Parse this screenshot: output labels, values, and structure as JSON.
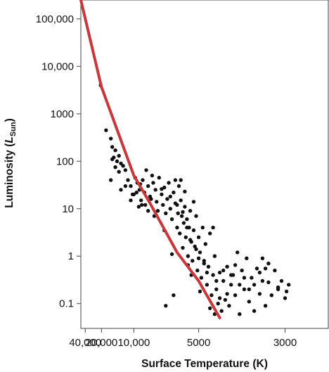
{
  "chart_data": {
    "type": "scatter",
    "title": "",
    "xlabel": "Surface Temperature (K)",
    "ylabel_parts": {
      "main": "Luminosity (",
      "L": "L",
      "sub": "Sun",
      "close": ")"
    },
    "x_scale": "reciprocal",
    "y_scale": "log",
    "xlim": [
      55000,
      2500
    ],
    "ylim": [
      0.03,
      250000
    ],
    "x_ticks": [
      {
        "value": 40000,
        "label": "40,000"
      },
      {
        "value": 20000,
        "label": "20,000"
      },
      {
        "value": 10000,
        "label": "10,000"
      },
      {
        "value": 5000,
        "label": "5000"
      },
      {
        "value": 3000,
        "label": "3000"
      }
    ],
    "y_ticks": [
      {
        "value": 0.1,
        "label": "0.1"
      },
      {
        "value": 1,
        "label": "1"
      },
      {
        "value": 10,
        "label": "10"
      },
      {
        "value": 100,
        "label": "100"
      },
      {
        "value": 1000,
        "label": "1000"
      },
      {
        "value": 10000,
        "label": "10,000"
      },
      {
        "value": 100000,
        "label": "100,000"
      }
    ],
    "grid": false,
    "colors": {
      "points": "#111111",
      "main_sequence_line": "#c8373a"
    },
    "main_sequence_line": [
      {
        "temperature": 55000,
        "luminosity": 250000
      },
      {
        "temperature": 20000,
        "luminosity": 3700
      },
      {
        "temperature": 10000,
        "luminosity": 50
      },
      {
        "temperature": 8000,
        "luminosity": 13
      },
      {
        "temperature": 6000,
        "luminosity": 1.2
      },
      {
        "temperature": 5000,
        "luminosity": 0.3
      },
      {
        "temperature": 4300,
        "luminosity": 0.05
      }
    ],
    "series": [
      {
        "points": [
          [
            20500,
            4000
          ],
          [
            17500,
            450
          ],
          [
            15500,
            300
          ],
          [
            15000,
            200
          ],
          [
            14500,
            120
          ],
          [
            14000,
            170
          ],
          [
            13500,
            100
          ],
          [
            13000,
            130
          ],
          [
            12500,
            90
          ],
          [
            12000,
            80
          ],
          [
            11500,
            65
          ],
          [
            11000,
            40
          ],
          [
            11500,
            30
          ],
          [
            12500,
            25
          ],
          [
            13000,
            60
          ],
          [
            14000,
            75
          ],
          [
            15000,
            110
          ],
          [
            15500,
            40
          ],
          [
            10500,
            30
          ],
          [
            10000,
            20
          ],
          [
            10500,
            15
          ],
          [
            9800,
            45
          ],
          [
            9500,
            35
          ],
          [
            9200,
            25
          ],
          [
            9000,
            15
          ],
          [
            8800,
            40
          ],
          [
            8600,
            22
          ],
          [
            8500,
            12
          ],
          [
            8400,
            65
          ],
          [
            8200,
            30
          ],
          [
            8000,
            18
          ],
          [
            7800,
            50
          ],
          [
            7700,
            35
          ],
          [
            7500,
            25
          ],
          [
            7400,
            14
          ],
          [
            7300,
            9
          ],
          [
            7200,
            45
          ],
          [
            7000,
            20
          ],
          [
            6900,
            12
          ],
          [
            6800,
            28
          ],
          [
            6700,
            8
          ],
          [
            6600,
            16
          ],
          [
            6500,
            35
          ],
          [
            6400,
            10
          ],
          [
            6300,
            6
          ],
          [
            6200,
            22
          ],
          [
            6100,
            13
          ],
          [
            6000,
            4
          ],
          [
            5950,
            8
          ],
          [
            5900,
            30
          ],
          [
            5850,
            3
          ],
          [
            5800,
            15
          ],
          [
            5750,
            7
          ],
          [
            5700,
            1.5
          ],
          [
            5650,
            5
          ],
          [
            5600,
            11
          ],
          [
            5550,
            2.5
          ],
          [
            5500,
            6
          ],
          [
            5450,
            1
          ],
          [
            5400,
            4
          ],
          [
            5350,
            9
          ],
          [
            5300,
            2
          ],
          [
            5250,
            0.8
          ],
          [
            5200,
            3.5
          ],
          [
            5150,
            1.6
          ],
          [
            5100,
            7
          ],
          [
            5050,
            0.5
          ],
          [
            5000,
            2.5
          ],
          [
            4950,
            1.2
          ],
          [
            4900,
            0.35
          ],
          [
            4850,
            4
          ],
          [
            4800,
            0.8
          ],
          [
            4750,
            1.8
          ],
          [
            4700,
            0.25
          ],
          [
            4650,
            0.6
          ],
          [
            4600,
            3
          ],
          [
            4550,
            0.15
          ],
          [
            4500,
            0.4
          ],
          [
            4450,
            1
          ],
          [
            4400,
            0.2
          ],
          [
            4350,
            0.1
          ],
          [
            4300,
            0.45
          ],
          [
            4250,
            0.07
          ],
          [
            4200,
            0.3
          ],
          [
            4150,
            0.12
          ],
          [
            4100,
            0.6
          ],
          [
            4050,
            0.09
          ],
          [
            4000,
            0.25
          ],
          [
            3950,
            0.4
          ],
          [
            3900,
            0.15
          ],
          [
            3850,
            1.2
          ],
          [
            3800,
            0.06
          ],
          [
            3750,
            0.5
          ],
          [
            3700,
            0.2
          ],
          [
            3650,
            0.9
          ],
          [
            3600,
            0.11
          ],
          [
            3550,
            0.35
          ],
          [
            3500,
            0.07
          ],
          [
            3450,
            0.55
          ],
          [
            3400,
            0.16
          ],
          [
            3350,
            0.9
          ],
          [
            3300,
            0.09
          ],
          [
            3250,
            0.28
          ],
          [
            3200,
            0.15
          ],
          [
            3150,
            0.5
          ],
          [
            3100,
            0.2
          ],
          [
            3050,
            0.3
          ],
          [
            3000,
            0.13
          ],
          [
            2980,
            0.18
          ],
          [
            2950,
            0.25
          ],
          [
            6700,
            0.09
          ],
          [
            6200,
            0.15
          ],
          [
            5300,
            0.4
          ],
          [
            4100,
            0.16
          ],
          [
            3500,
            0.25
          ],
          [
            3350,
            0.3
          ],
          [
            4600,
            0.08
          ],
          [
            4450,
            0.06
          ],
          [
            6300,
            1.1
          ],
          [
            6800,
            3.5
          ],
          [
            7600,
            7
          ],
          [
            8200,
            9
          ],
          [
            9300,
            11
          ],
          [
            10200,
            20
          ],
          [
            5600,
            23
          ],
          [
            5200,
            14
          ],
          [
            5800,
            40
          ],
          [
            6100,
            40
          ],
          [
            7000,
            26
          ],
          [
            7900,
            16
          ],
          [
            8900,
            12
          ],
          [
            9600,
            22
          ],
          [
            9100,
            33
          ],
          [
            6400,
            18
          ],
          [
            6000,
            12
          ],
          [
            5700,
            8.5
          ],
          [
            5500,
            4
          ],
          [
            5350,
            2.2
          ],
          [
            5100,
            1.4
          ],
          [
            4800,
            0.7
          ],
          [
            4950,
            0.18
          ],
          [
            4700,
            0.45
          ],
          [
            4400,
            0.3
          ],
          [
            4200,
            0.5
          ],
          [
            3900,
            0.65
          ],
          [
            3700,
            0.35
          ],
          [
            3600,
            0.2
          ],
          [
            3400,
            0.45
          ],
          [
            3250,
            0.7
          ],
          [
            3100,
            0.22
          ],
          [
            4500,
            4
          ],
          [
            4300,
            0.13
          ],
          [
            4000,
            0.4
          ],
          [
            3800,
            0.25
          ],
          [
            3300,
            0.55
          ],
          [
            5000,
            0.9
          ],
          [
            5450,
            0.65
          ]
        ]
      }
    ]
  }
}
